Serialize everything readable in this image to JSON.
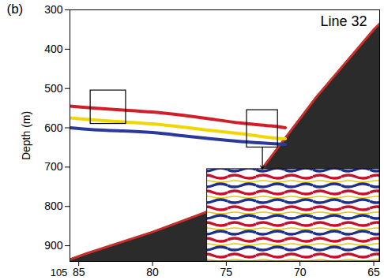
{
  "chart_data": {
    "type": "seismic_section",
    "panel": "(b)",
    "title": "Line 32",
    "ylabel": "Depth (m)",
    "annotations": [
      "105"
    ],
    "xlim": [
      85.6,
      64.6
    ],
    "xticks": [
      85,
      80,
      75,
      70,
      65
    ],
    "ylim": [
      300,
      940
    ],
    "yticks": [
      300,
      400,
      500,
      600,
      700,
      800,
      900
    ],
    "seafloor": {
      "x": [
        85.6,
        84.5,
        80,
        76.4,
        72.6,
        68.9,
        65,
        64.6
      ],
      "depth": [
        935,
        920,
        865,
        815,
        705,
        522,
        350,
        335
      ],
      "color": "#2b2b2b"
    },
    "reflector_x": [
      85.6,
      84,
      82,
      80,
      78,
      76,
      74,
      72,
      71
    ],
    "reflectors": [
      {
        "color": "#d11f2a",
        "depth": [
          545,
          550,
          555,
          560,
          568,
          578,
          588,
          595,
          600
        ]
      },
      {
        "color": "#f2d600",
        "depth": [
          575,
          580,
          585,
          590,
          598,
          607,
          615,
          625,
          628
        ]
      },
      {
        "color": "#2a3a9a",
        "depth": [
          600,
          605,
          608,
          612,
          620,
          628,
          635,
          640,
          642
        ]
      }
    ],
    "boxes": [
      {
        "x": [
          84.2,
          81.8
        ],
        "depth": [
          505,
          590
        ]
      },
      {
        "x": [
          73.6,
          71.5
        ],
        "depth": [
          555,
          650
        ]
      }
    ],
    "inset": {
      "x": [
        76.3,
        64.6
      ],
      "depth": [
        705,
        940
      ]
    }
  }
}
